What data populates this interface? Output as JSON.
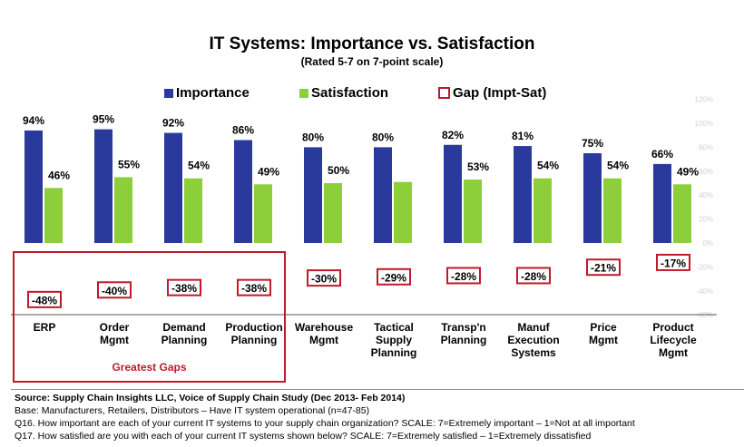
{
  "title": "IT Systems:  Importance vs. Satisfaction",
  "subtitle": "(Rated 5-7 on 7-point scale)",
  "legend": {
    "importance": "Importance",
    "satisfaction": "Satisfaction",
    "gap": "Gap (Impt-Sat)"
  },
  "colors": {
    "importance": "#2a3a9c",
    "satisfaction": "#8ccf3a",
    "gap_border": "#c0192b"
  },
  "greatest_gaps_label": "Greatest Gaps",
  "chart_data": {
    "type": "bar",
    "categories": [
      [
        "ERP"
      ],
      [
        "Order",
        "Mgmt"
      ],
      [
        "Demand",
        "Planning"
      ],
      [
        "Production",
        "Planning"
      ],
      [
        "Warehouse",
        "Mgmt"
      ],
      [
        "Tactical",
        "Supply",
        "Planning"
      ],
      [
        "Transp'n",
        "Planning"
      ],
      [
        "Manuf",
        "Execution",
        "Systems"
      ],
      [
        "Price",
        "Mgmt"
      ],
      [
        "Product",
        "Lifecycle",
        "Mgmt"
      ]
    ],
    "series": [
      {
        "name": "Importance",
        "values": [
          94,
          95,
          92,
          86,
          80,
          80,
          82,
          81,
          75,
          66
        ],
        "labels": [
          "94%",
          "95%",
          "92%",
          "86%",
          "80%",
          "80%",
          "82%",
          "81%",
          "75%",
          "66%"
        ]
      },
      {
        "name": "Satisfaction",
        "values": [
          46,
          55,
          54,
          49,
          50,
          51,
          53,
          54,
          54,
          49
        ],
        "labels": [
          "46%",
          "55%",
          "54%",
          "49%",
          "50%",
          "",
          "53%",
          "54%",
          "54%",
          "49%"
        ]
      },
      {
        "name": "Gap (Impt-Sat)",
        "values": [
          -48,
          -40,
          -38,
          -38,
          -30,
          -29,
          -28,
          -28,
          -21,
          -17
        ],
        "labels": [
          "-48%",
          "-40%",
          "-38%",
          "-38%",
          "-30%",
          "-29%",
          "-28%",
          "-28%",
          "-21%",
          "-17%"
        ]
      }
    ],
    "y_axis_ticks": [
      "120%",
      "100%",
      "80%",
      "60%",
      "40%",
      "20%",
      "0%",
      "-20%",
      "-40%",
      "-60%"
    ],
    "ylim": [
      -60,
      120
    ]
  },
  "footer": {
    "source": "Source:  Supply Chain Insights LLC, Voice of Supply Chain Study (Dec 2013- Feb 2014)",
    "base": "Base:  Manufacturers, Retailers, Distributors – Have IT system operational (n=47-85)",
    "q16": "Q16. How important are each of your current IT systems to your supply chain organization? SCALE:  7=Extremely important – 1=Not at all important",
    "q17": "Q17. How satisfied are you with each of your current IT systems shown below? SCALE:  7=Extremely satisfied – 1=Extremely dissatisfied"
  }
}
